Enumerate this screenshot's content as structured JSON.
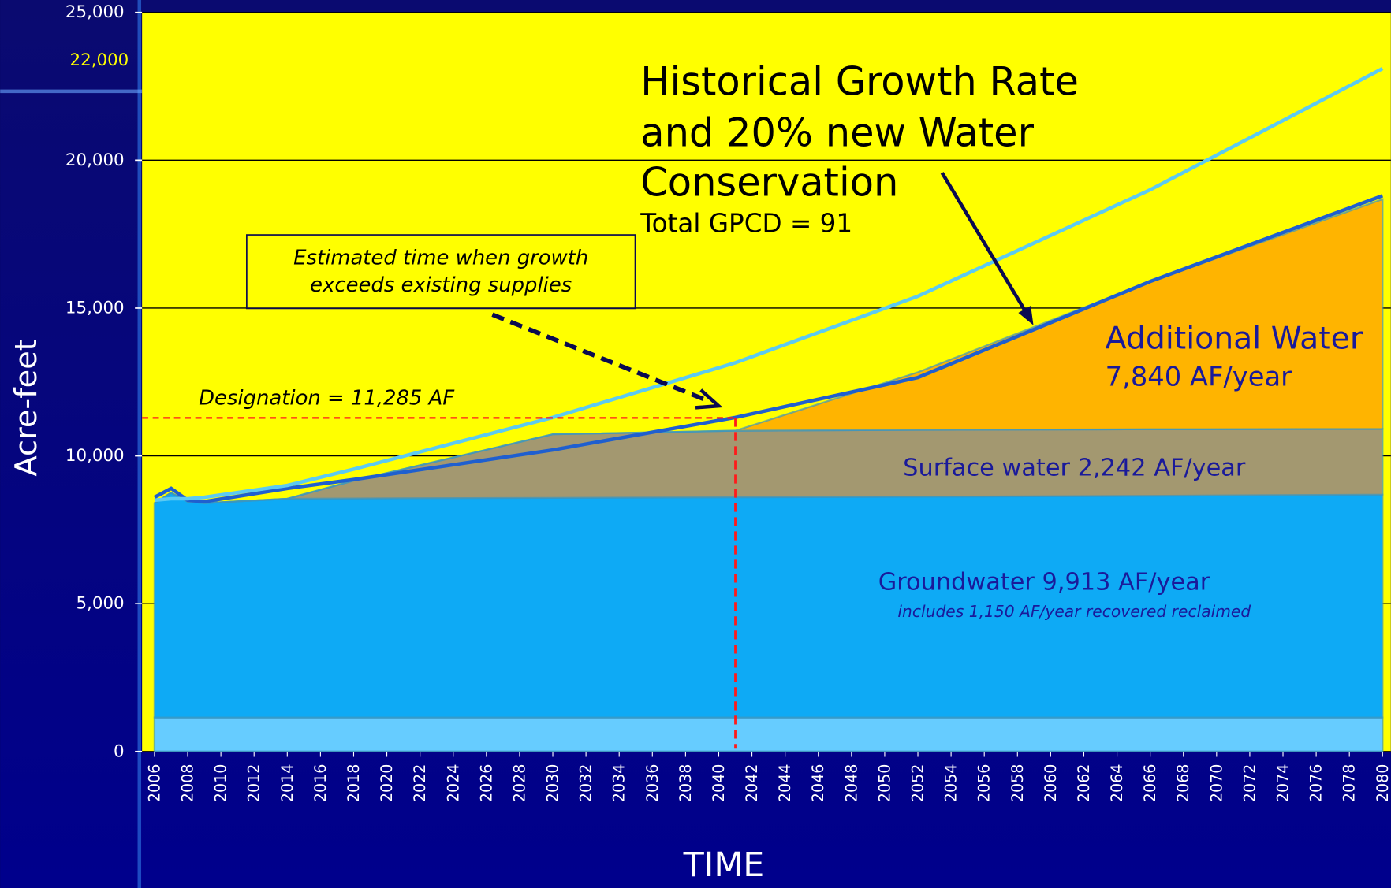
{
  "chart_data": {
    "type": "area",
    "ylabel": "Acre-feet",
    "xlabel": "TIME",
    "x": [
      2006,
      2007,
      2008,
      2009,
      2014,
      2018,
      2030,
      2041,
      2052,
      2066,
      2080
    ],
    "xlim": [
      2005.25,
      2080.5
    ],
    "xticks": [
      2006,
      2008,
      2010,
      2012,
      2014,
      2016,
      2018,
      2020,
      2022,
      2024,
      2026,
      2028,
      2030,
      2032,
      2034,
      2036,
      2038,
      2040,
      2042,
      2044,
      2046,
      2048,
      2050,
      2052,
      2054,
      2056,
      2058,
      2060,
      2062,
      2064,
      2066,
      2068,
      2070,
      2072,
      2074,
      2076,
      2078,
      2080
    ],
    "ylim": [
      0,
      25000
    ],
    "yticks": [
      0,
      {
        "value": 5000,
        "label": "5,000"
      },
      {
        "value": 10000,
        "label": "10,000"
      },
      {
        "value": 15000,
        "label": "15,000"
      },
      {
        "value": 20000,
        "label": "20,000"
      },
      {
        "value": 25000,
        "label": "25,000"
      }
    ],
    "grid": true,
    "series": [
      {
        "type": "area",
        "color": "#66ccff",
        "values": [
          1150,
          1150,
          1150,
          1150,
          1150,
          1150,
          1150,
          1150,
          1150,
          1150,
          1150
        ]
      },
      {
        "type": "area",
        "color": "#0eaaf5",
        "values": [
          7250,
          7600,
          7300,
          7250,
          7400,
          7410,
          7430,
          7450,
          7470,
          7500,
          7540
        ]
      },
      {
        "type": "area",
        "color": "#a39870",
        "values": [
          0,
          0,
          0,
          0,
          0,
          600,
          2150,
          2250,
          2260,
          2250,
          2220
        ]
      },
      {
        "type": "area",
        "color": "#ffb400",
        "values": [
          0,
          0,
          0,
          0,
          0,
          0,
          0,
          0,
          1950,
          4990,
          7770
        ]
      },
      {
        "type": "line",
        "color": "#1f5fcf",
        "values": [
          8600,
          8900,
          8500,
          8450,
          8900,
          9200,
          10200,
          11300,
          12650,
          15900,
          18800
        ]
      },
      {
        "type": "line",
        "color": "#5ccaf2",
        "values": [
          8500,
          8550,
          8550,
          8600,
          9000,
          9550,
          11300,
          13150,
          15400,
          19000,
          23100
        ]
      }
    ],
    "designation": {
      "value": 11285,
      "label": "Designation = 11,285 AF"
    },
    "crossover_x": 2041,
    "annotations": {
      "scenario": [
        "Historical Growth Rate",
        "and 20% new Water",
        "Conservation"
      ],
      "gpcd": "Total GPCD = 91",
      "estimate": [
        "Estimated time when growth",
        "exceeds existing supplies"
      ],
      "additional": [
        "Additional Water",
        "7,840 AF/year"
      ],
      "surface": "Surface water 2,242 AF/year",
      "groundwater": "Groundwater 9,913 AF/year",
      "reclaimed": "includes 1,150 AF/year recovered reclaimed",
      "marker": "22,000"
    }
  }
}
